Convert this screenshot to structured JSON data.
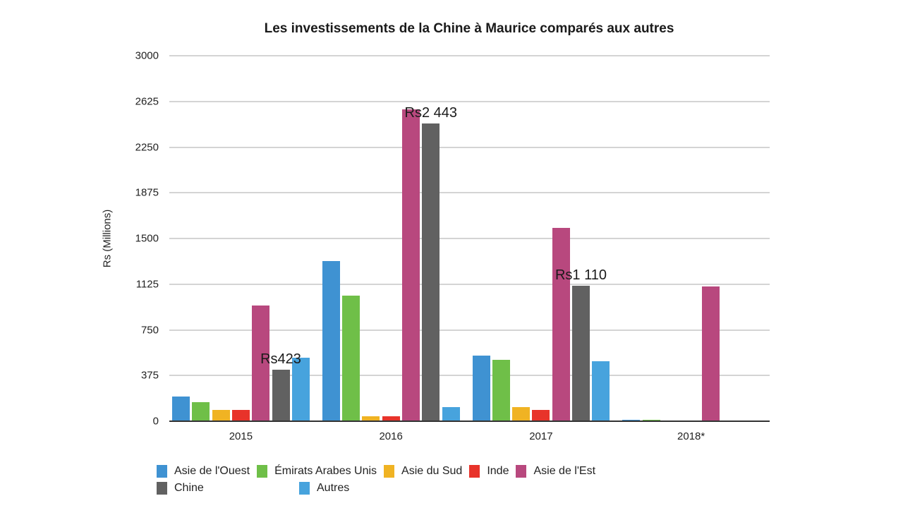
{
  "chart_data": {
    "type": "bar",
    "title": "Les investissements de la Chine à Maurice comparés aux autres",
    "xlabel": "",
    "ylabel": "Rs (Millions)",
    "ylim": [
      0,
      3000
    ],
    "yticks": [
      "3000",
      "2625",
      "2250",
      "1875",
      "1500",
      "1125",
      "750",
      "375",
      "0"
    ],
    "grid": true,
    "legend_position": "bottom",
    "categories": [
      "2015",
      "2016",
      "2017",
      "2018*"
    ],
    "series": [
      {
        "name": "Asie de l'Ouest",
        "color": "#3f92d2",
        "values": [
          203,
          1314,
          538,
          12
        ]
      },
      {
        "name": "Émirats Arabes Unis",
        "color": "#6fbf48",
        "values": [
          156,
          1031,
          504,
          12
        ]
      },
      {
        "name": "Asie du Sud",
        "color": "#f0b323",
        "values": [
          93,
          40,
          116,
          0
        ]
      },
      {
        "name": "Inde",
        "color": "#e8332a",
        "values": [
          93,
          40,
          93,
          0
        ]
      },
      {
        "name": "Asie de l'Est",
        "color": "#b8487e",
        "values": [
          950,
          2560,
          1587,
          1106
        ]
      },
      {
        "name": "Chine",
        "color": "#616161",
        "values": [
          423,
          2443,
          1110,
          0
        ]
      },
      {
        "name": "Autres",
        "color": "#47a3dd",
        "values": [
          521,
          116,
          492,
          0
        ]
      }
    ],
    "annotations": [
      {
        "text": "Rs423",
        "category": "2015",
        "series": "Chine"
      },
      {
        "text": "Rs2 443",
        "category": "2016",
        "series": "Chine"
      },
      {
        "text": "Rs1 110",
        "category": "2017",
        "series": "Chine"
      }
    ]
  }
}
